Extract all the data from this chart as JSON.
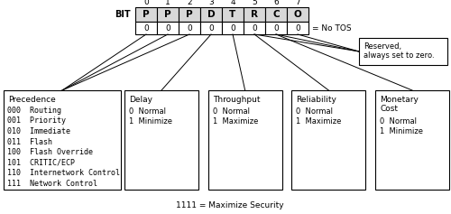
{
  "bit_labels": [
    "0",
    "1",
    "2",
    "3",
    "4",
    "5",
    "6",
    "7"
  ],
  "bit_letters": [
    "P",
    "P",
    "P",
    "D",
    "T",
    "R",
    "C",
    "O"
  ],
  "bit_zeros": [
    "0",
    "0",
    "0",
    "0",
    "0",
    "0",
    "0",
    "0"
  ],
  "no_tos_text": "= No TOS",
  "reserved_text": "Reserved,\nalways set to zero.",
  "bit_label_prefix": "BIT",
  "maximize_security": "1111 = Maximize Security",
  "precedence_box": {
    "title": "Precedence",
    "items": [
      "000  Routing",
      "001  Priority",
      "010  Immediate",
      "011  Flash",
      "100  Flash Override",
      "101  CRITIC/ECP",
      "110  Internetwork Control",
      "111  Network Control"
    ]
  },
  "delay_box": {
    "title": "Delay",
    "items": [
      "0  Normal",
      "1  Minimize"
    ]
  },
  "throughput_box": {
    "title": "Throughput",
    "items": [
      "0  Normal",
      "1  Maximize"
    ]
  },
  "reliability_box": {
    "title": "Reliability",
    "items": [
      "0  Normal",
      "1  Maximize"
    ]
  },
  "monetary_box": {
    "title": "Monetary\nCost",
    "items": [
      "0  Normal",
      "1  Minimize"
    ]
  },
  "bg_color": "#ffffff",
  "box_fill": "#d8d8d8",
  "text_color": "#000000",
  "font_size": 6.5,
  "title_font_size": 7.5
}
